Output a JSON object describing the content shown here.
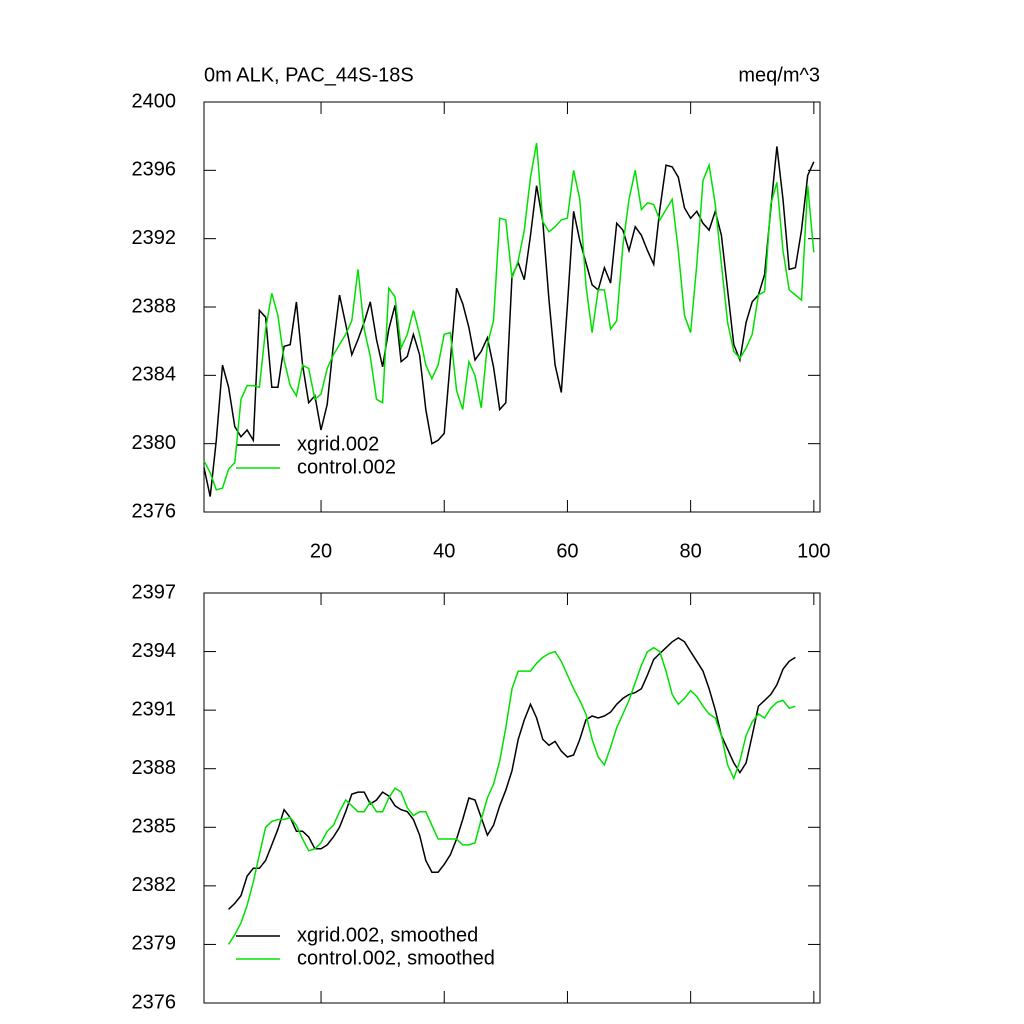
{
  "chart_data": [
    {
      "type": "line",
      "title": "0m ALK, PAC_44S-18S",
      "units": "meq/m^3",
      "x": [
        1,
        2,
        3,
        4,
        5,
        6,
        7,
        8,
        9,
        10,
        11,
        12,
        13,
        14,
        15,
        16,
        17,
        18,
        19,
        20,
        21,
        22,
        23,
        24,
        25,
        26,
        27,
        28,
        29,
        30,
        31,
        32,
        33,
        34,
        35,
        36,
        37,
        38,
        39,
        40,
        41,
        42,
        43,
        44,
        45,
        46,
        47,
        48,
        49,
        50,
        51,
        52,
        53,
        54,
        55,
        56,
        57,
        58,
        59,
        60,
        61,
        62,
        63,
        64,
        65,
        66,
        67,
        68,
        69,
        70,
        71,
        72,
        73,
        74,
        75,
        76,
        77,
        78,
        79,
        80,
        81,
        82,
        83,
        84,
        85,
        86,
        87,
        88,
        89,
        90,
        91,
        92,
        93,
        94,
        95,
        96,
        97,
        98,
        99,
        100
      ],
      "series": [
        {
          "name": "xgrid.002",
          "color": "#000000",
          "values": [
            2378.6,
            2376.9,
            2380.2,
            2384.6,
            2383.3,
            2381.0,
            2380.4,
            2380.8,
            2380.2,
            2387.8,
            2387.4,
            2383.3,
            2383.3,
            2385.7,
            2385.8,
            2388.3,
            2384.6,
            2382.4,
            2382.8,
            2380.8,
            2382.3,
            2385.8,
            2388.7,
            2387.0,
            2385.2,
            2386.1,
            2387.1,
            2388.3,
            2386.1,
            2384.5,
            2386.7,
            2388.1,
            2384.8,
            2385.1,
            2386.4,
            2385.2,
            2382.0,
            2380.0,
            2380.2,
            2380.6,
            2384.9,
            2389.1,
            2388.2,
            2386.8,
            2384.9,
            2385.4,
            2386.2,
            2384.5,
            2382.0,
            2382.4,
            2389.8,
            2390.6,
            2389.6,
            2392.2,
            2395.1,
            2393.0,
            2388.4,
            2384.6,
            2383.0,
            2388.1,
            2393.6,
            2391.9,
            2390.6,
            2389.3,
            2389.0,
            2390.3,
            2389.4,
            2392.9,
            2392.5,
            2391.3,
            2392.7,
            2392.2,
            2391.3,
            2390.5,
            2393.7,
            2396.3,
            2396.2,
            2395.6,
            2393.8,
            2393.2,
            2393.6,
            2392.9,
            2392.5,
            2393.6,
            2392.2,
            2389.0,
            2385.8,
            2384.9,
            2387.1,
            2388.3,
            2388.7,
            2389.9,
            2393.7,
            2397.4,
            2394.3,
            2390.2,
            2390.3,
            2392.5,
            2395.7,
            2396.5
          ]
        },
        {
          "name": "control.002",
          "color": "#00e000",
          "values": [
            2379.0,
            2378.3,
            2377.3,
            2377.4,
            2378.5,
            2378.9,
            2382.6,
            2383.4,
            2383.4,
            2383.3,
            2386.7,
            2388.8,
            2387.5,
            2384.9,
            2383.4,
            2382.8,
            2384.6,
            2384.4,
            2382.6,
            2382.9,
            2384.4,
            2385.2,
            2385.8,
            2386.4,
            2387.2,
            2390.2,
            2386.7,
            2385.1,
            2382.6,
            2382.4,
            2389.1,
            2388.6,
            2385.6,
            2386.4,
            2387.8,
            2386.4,
            2384.6,
            2383.8,
            2384.6,
            2386.4,
            2386.5,
            2383.1,
            2382.0,
            2384.8,
            2384.0,
            2382.1,
            2385.8,
            2387.2,
            2393.2,
            2393.1,
            2389.7,
            2390.7,
            2392.5,
            2395.6,
            2397.6,
            2393.0,
            2392.4,
            2392.7,
            2393.1,
            2393.2,
            2396.0,
            2394.3,
            2389.3,
            2386.5,
            2389.0,
            2389.0,
            2386.7,
            2387.2,
            2391.6,
            2394.3,
            2396.0,
            2393.7,
            2394.1,
            2394.0,
            2393.1,
            2393.7,
            2394.3,
            2391.3,
            2387.5,
            2386.5,
            2390.5,
            2395.4,
            2396.3,
            2394.0,
            2390.5,
            2387.1,
            2385.4,
            2385.0,
            2385.6,
            2386.4,
            2388.7,
            2388.9,
            2394.0,
            2395.3,
            2391.3,
            2389.0,
            2388.7,
            2388.4,
            2395.1,
            2391.2
          ]
        }
      ],
      "xlim": [
        1,
        101
      ],
      "ylim": [
        2376,
        2400
      ],
      "xticks": [
        20,
        40,
        60,
        80,
        100
      ],
      "yticks": [
        2376,
        2380,
        2384,
        2388,
        2392,
        2396,
        2400
      ],
      "xtick_labels": true,
      "legend": "lower left",
      "grid": false
    },
    {
      "type": "line",
      "x": [
        5,
        6,
        7,
        8,
        9,
        10,
        11,
        12,
        13,
        14,
        15,
        16,
        17,
        18,
        19,
        20,
        21,
        22,
        23,
        24,
        25,
        26,
        27,
        28,
        29,
        30,
        31,
        32,
        33,
        34,
        35,
        36,
        37,
        38,
        39,
        40,
        41,
        42,
        43,
        44,
        45,
        46,
        47,
        48,
        49,
        50,
        51,
        52,
        53,
        54,
        55,
        56,
        57,
        58,
        59,
        60,
        61,
        62,
        63,
        64,
        65,
        66,
        67,
        68,
        69,
        70,
        71,
        72,
        73,
        74,
        75,
        76,
        77,
        78,
        79,
        80,
        81,
        82,
        83,
        84,
        85,
        86,
        87,
        88,
        89,
        90,
        91,
        92,
        93,
        94,
        95,
        96,
        97
      ],
      "series": [
        {
          "name": "xgrid.002, smoothed",
          "color": "#000000",
          "values": [
            2380.8,
            2381.1,
            2381.5,
            2382.5,
            2382.9,
            2382.9,
            2383.3,
            2384.1,
            2384.9,
            2385.9,
            2385.5,
            2384.8,
            2384.8,
            2384.5,
            2383.9,
            2383.9,
            2384.1,
            2384.5,
            2385.0,
            2385.8,
            2386.7,
            2386.8,
            2386.8,
            2386.2,
            2386.4,
            2386.8,
            2386.6,
            2386.1,
            2385.9,
            2385.8,
            2385.4,
            2384.6,
            2383.3,
            2382.7,
            2382.7,
            2383.1,
            2383.6,
            2384.4,
            2385.4,
            2386.5,
            2386.4,
            2385.5,
            2384.6,
            2385.1,
            2386.1,
            2386.9,
            2387.9,
            2389.5,
            2390.5,
            2391.3,
            2390.6,
            2389.5,
            2389.2,
            2389.4,
            2388.9,
            2388.6,
            2388.7,
            2389.5,
            2390.5,
            2390.7,
            2390.6,
            2390.7,
            2390.9,
            2391.3,
            2391.6,
            2391.8,
            2391.9,
            2392.1,
            2392.8,
            2393.6,
            2393.9,
            2394.2,
            2394.5,
            2394.7,
            2394.5,
            2394.0,
            2393.5,
            2393.0,
            2392.1,
            2391.0,
            2389.7,
            2389.0,
            2388.3,
            2387.8,
            2388.3,
            2389.7,
            2391.2,
            2391.5,
            2391.8,
            2392.3,
            2393.1,
            2393.5,
            2393.7
          ]
        },
        {
          "name": "control.002, smoothed",
          "color": "#00e000",
          "values": [
            2379.0,
            2379.5,
            2380.1,
            2381.0,
            2382.2,
            2383.6,
            2385.0,
            2385.3,
            2385.4,
            2385.4,
            2385.5,
            2385.1,
            2384.4,
            2383.8,
            2383.9,
            2384.2,
            2384.8,
            2385.1,
            2385.8,
            2386.4,
            2386.1,
            2385.8,
            2385.8,
            2386.3,
            2385.8,
            2385.8,
            2386.5,
            2387.0,
            2386.8,
            2386.0,
            2385.6,
            2385.8,
            2385.8,
            2385.1,
            2384.4,
            2384.4,
            2384.4,
            2384.4,
            2384.1,
            2384.1,
            2384.2,
            2385.4,
            2386.5,
            2387.2,
            2388.4,
            2390.1,
            2392.1,
            2393.0,
            2393.0,
            2393.0,
            2393.4,
            2393.7,
            2393.9,
            2394.0,
            2393.5,
            2392.8,
            2392.1,
            2391.5,
            2390.8,
            2389.5,
            2388.6,
            2388.2,
            2389.1,
            2390.1,
            2390.8,
            2391.5,
            2392.4,
            2393.3,
            2394.0,
            2394.2,
            2394.0,
            2393.0,
            2391.8,
            2391.3,
            2391.6,
            2392.0,
            2391.7,
            2391.2,
            2390.8,
            2390.6,
            2389.7,
            2388.2,
            2387.5,
            2388.4,
            2389.7,
            2390.4,
            2390.8,
            2390.6,
            2391.1,
            2391.4,
            2391.5,
            2391.1,
            2391.2
          ]
        }
      ],
      "xlim": [
        1,
        101
      ],
      "ylim": [
        2376,
        2397
      ],
      "xticks": [
        20,
        40,
        60,
        80,
        100
      ],
      "yticks": [
        2376,
        2379,
        2382,
        2385,
        2388,
        2391,
        2394,
        2397
      ],
      "xtick_labels": false,
      "legend": "lower left",
      "grid": false
    }
  ]
}
